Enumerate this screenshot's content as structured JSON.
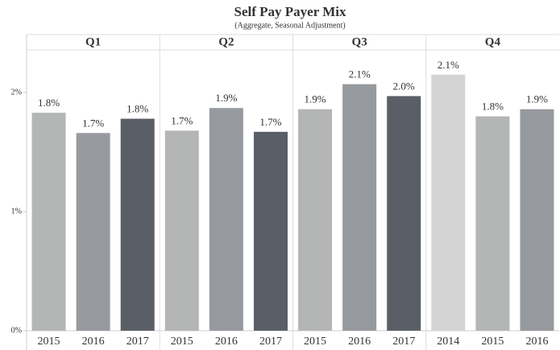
{
  "chart_data": {
    "type": "bar",
    "title": "Self Pay Payer Mix",
    "subtitle": "(Aggregate, Seasonal Adjustment)",
    "ylim": [
      0,
      2.4
    ],
    "yticks": [
      {
        "value": 0,
        "label": "0%"
      },
      {
        "value": 1,
        "label": "1%"
      },
      {
        "value": 2,
        "label": "2%"
      }
    ],
    "panels": [
      {
        "name": "Q1",
        "categories": [
          "2015",
          "2016",
          "2017"
        ],
        "values": [
          1.83,
          1.66,
          1.78
        ],
        "value_labels": [
          "1.8%",
          "1.7%",
          "1.8%"
        ],
        "colors": [
          "#b3b6b5",
          "#969a9f",
          "#5a5e66"
        ]
      },
      {
        "name": "Q2",
        "categories": [
          "2015",
          "2016",
          "2017"
        ],
        "values": [
          1.68,
          1.87,
          1.67
        ],
        "value_labels": [
          "1.7%",
          "1.9%",
          "1.7%"
        ],
        "colors": [
          "#b3b6b5",
          "#969a9f",
          "#5a5e66"
        ]
      },
      {
        "name": "Q3",
        "categories": [
          "2015",
          "2016",
          "2017"
        ],
        "values": [
          1.86,
          2.07,
          1.97
        ],
        "value_labels": [
          "1.9%",
          "2.1%",
          "2.0%"
        ],
        "colors": [
          "#b3b6b5",
          "#969a9f",
          "#5a5e66"
        ]
      },
      {
        "name": "Q4",
        "categories": [
          "2014",
          "2015",
          "2016"
        ],
        "values": [
          2.15,
          1.8,
          1.86
        ],
        "value_labels": [
          "2.1%",
          "1.8%",
          "1.9%"
        ],
        "colors": [
          "#d4d4d4",
          "#b3b6b5",
          "#969a9f"
        ]
      }
    ]
  }
}
